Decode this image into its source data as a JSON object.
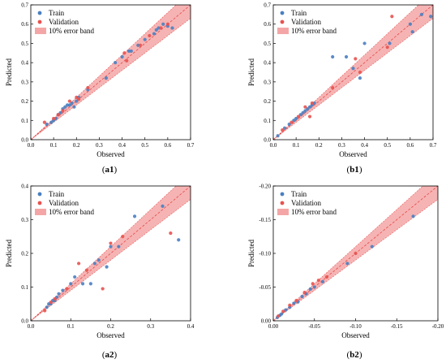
{
  "legend": {
    "train": "Train",
    "validation": "Validation",
    "band": "10% error band"
  },
  "colors": {
    "train": "#4a7fc1",
    "validation": "#e8524f",
    "band": "#f4a6a6",
    "band_edge": "#e85a5a",
    "diag": "#e23b3b"
  },
  "chart_data": [
    {
      "id": "a1",
      "type": "scatter",
      "caption_letter": "a1",
      "xlabel": "Observed",
      "ylabel": "Predicted",
      "xlim": [
        0,
        0.7
      ],
      "ylim": [
        0,
        0.7
      ],
      "xticks": [
        "0.0",
        "0.1",
        "0.2",
        "0.3",
        "0.4",
        "0.5",
        "0.6",
        "0.7"
      ],
      "yticks": [
        "0.0",
        "0.1",
        "0.2",
        "0.3",
        "0.4",
        "0.5",
        "0.6",
        "0.7"
      ],
      "tick_values": [
        0,
        0.1,
        0.2,
        0.3,
        0.4,
        0.5,
        0.6,
        0.7
      ],
      "series": [
        {
          "name": "Train",
          "points": [
            [
              0.07,
              0.08
            ],
            [
              0.09,
              0.09
            ],
            [
              0.1,
              0.1
            ],
            [
              0.11,
              0.11
            ],
            [
              0.12,
              0.13
            ],
            [
              0.13,
              0.14
            ],
            [
              0.14,
              0.16
            ],
            [
              0.15,
              0.17
            ],
            [
              0.16,
              0.18
            ],
            [
              0.17,
              0.18
            ],
            [
              0.18,
              0.19
            ],
            [
              0.19,
              0.17
            ],
            [
              0.2,
              0.2
            ],
            [
              0.21,
              0.22
            ],
            [
              0.25,
              0.26
            ],
            [
              0.33,
              0.32
            ],
            [
              0.37,
              0.4
            ],
            [
              0.4,
              0.43
            ],
            [
              0.43,
              0.46
            ],
            [
              0.44,
              0.46
            ],
            [
              0.47,
              0.49
            ],
            [
              0.5,
              0.52
            ],
            [
              0.54,
              0.55
            ],
            [
              0.55,
              0.57
            ],
            [
              0.56,
              0.58
            ],
            [
              0.58,
              0.6
            ],
            [
              0.6,
              0.59
            ],
            [
              0.62,
              0.58
            ]
          ]
        },
        {
          "name": "Validation",
          "points": [
            [
              0.06,
              0.09
            ],
            [
              0.1,
              0.11
            ],
            [
              0.12,
              0.13
            ],
            [
              0.14,
              0.15
            ],
            [
              0.17,
              0.2
            ],
            [
              0.2,
              0.22
            ],
            [
              0.21,
              0.21
            ],
            [
              0.25,
              0.27
            ],
            [
              0.41,
              0.45
            ],
            [
              0.42,
              0.41
            ],
            [
              0.48,
              0.49
            ],
            [
              0.52,
              0.54
            ],
            [
              0.57,
              0.58
            ],
            [
              0.6,
              0.6
            ]
          ]
        }
      ]
    },
    {
      "id": "b1",
      "type": "scatter",
      "caption_letter": "b1",
      "xlabel": "Observed",
      "ylabel": "Predicted",
      "xlim": [
        0,
        0.7
      ],
      "ylim": [
        0,
        0.7
      ],
      "xticks": [
        "0.0",
        "0.1",
        "0.2",
        "0.3",
        "0.4",
        "0.5",
        "0.6",
        "0.7"
      ],
      "yticks": [
        "0.0",
        "0.1",
        "0.2",
        "0.3",
        "0.4",
        "0.5",
        "0.6",
        "0.7"
      ],
      "tick_values": [
        0,
        0.1,
        0.2,
        0.3,
        0.4,
        0.5,
        0.6,
        0.7
      ],
      "series": [
        {
          "name": "Train",
          "points": [
            [
              0.02,
              0.02
            ],
            [
              0.05,
              0.06
            ],
            [
              0.07,
              0.08
            ],
            [
              0.09,
              0.1
            ],
            [
              0.1,
              0.11
            ],
            [
              0.12,
              0.13
            ],
            [
              0.13,
              0.14
            ],
            [
              0.14,
              0.15
            ],
            [
              0.15,
              0.16
            ],
            [
              0.16,
              0.17
            ],
            [
              0.17,
              0.18
            ],
            [
              0.18,
              0.19
            ],
            [
              0.26,
              0.43
            ],
            [
              0.32,
              0.43
            ],
            [
              0.35,
              0.37
            ],
            [
              0.38,
              0.32
            ],
            [
              0.4,
              0.5
            ],
            [
              0.51,
              0.5
            ],
            [
              0.6,
              0.6
            ],
            [
              0.61,
              0.56
            ],
            [
              0.65,
              0.65
            ],
            [
              0.69,
              0.64
            ]
          ]
        },
        {
          "name": "Validation",
          "points": [
            [
              0.04,
              0.05
            ],
            [
              0.08,
              0.09
            ],
            [
              0.11,
              0.12
            ],
            [
              0.14,
              0.17
            ],
            [
              0.16,
              0.12
            ],
            [
              0.17,
              0.19
            ],
            [
              0.26,
              0.27
            ],
            [
              0.36,
              0.42
            ],
            [
              0.38,
              0.35
            ],
            [
              0.5,
              0.48
            ],
            [
              0.52,
              0.64
            ]
          ]
        }
      ]
    },
    {
      "id": "a2",
      "type": "scatter",
      "caption_letter": "a2",
      "xlabel": "Observed",
      "ylabel": "Predicted",
      "xlim": [
        0,
        0.4
      ],
      "ylim": [
        0,
        0.4
      ],
      "xticks": [
        "0.0",
        "0.1",
        "0.2",
        "0.3",
        "0.4"
      ],
      "yticks": [
        "0.0",
        "0.1",
        "0.2",
        "0.3",
        "0.4"
      ],
      "tick_values": [
        0,
        0.1,
        0.2,
        0.3,
        0.4
      ],
      "series": [
        {
          "name": "Train",
          "points": [
            [
              0.04,
              0.04
            ],
            [
              0.045,
              0.05
            ],
            [
              0.05,
              0.05
            ],
            [
              0.055,
              0.06
            ],
            [
              0.06,
              0.06
            ],
            [
              0.065,
              0.07
            ],
            [
              0.07,
              0.08
            ],
            [
              0.08,
              0.09
            ],
            [
              0.1,
              0.11
            ],
            [
              0.11,
              0.13
            ],
            [
              0.13,
              0.11
            ],
            [
              0.15,
              0.11
            ],
            [
              0.16,
              0.17
            ],
            [
              0.17,
              0.18
            ],
            [
              0.19,
              0.16
            ],
            [
              0.2,
              0.22
            ],
            [
              0.22,
              0.22
            ],
            [
              0.26,
              0.31
            ],
            [
              0.33,
              0.34
            ],
            [
              0.37,
              0.24
            ]
          ]
        },
        {
          "name": "Validation",
          "points": [
            [
              0.035,
              0.03
            ],
            [
              0.05,
              0.055
            ],
            [
              0.06,
              0.065
            ],
            [
              0.09,
              0.095
            ],
            [
              0.12,
              0.17
            ],
            [
              0.14,
              0.15
            ],
            [
              0.18,
              0.095
            ],
            [
              0.2,
              0.23
            ],
            [
              0.23,
              0.25
            ],
            [
              0.35,
              0.26
            ]
          ]
        }
      ]
    },
    {
      "id": "b2",
      "type": "scatter",
      "caption_letter": "b2",
      "xlabel": "Observed",
      "ylabel": "Predicted",
      "xlim": [
        0,
        -0.2
      ],
      "ylim": [
        0,
        -0.2
      ],
      "xticks": [
        "0.00",
        "-0.05",
        "-0.10",
        "-0.15",
        "-0.20"
      ],
      "yticks": [
        "0.00",
        "-0.05",
        "-0.10",
        "-0.15",
        "-0.20"
      ],
      "tick_values": [
        0,
        -0.05,
        -0.1,
        -0.15,
        -0.2
      ],
      "series": [
        {
          "name": "Train",
          "points": [
            [
              -0.005,
              -0.005
            ],
            [
              -0.008,
              -0.008
            ],
            [
              -0.01,
              -0.01
            ],
            [
              -0.015,
              -0.016
            ],
            [
              -0.02,
              -0.02
            ],
            [
              -0.025,
              -0.026
            ],
            [
              -0.03,
              -0.028
            ],
            [
              -0.035,
              -0.036
            ],
            [
              -0.04,
              -0.04
            ],
            [
              -0.045,
              -0.047
            ],
            [
              -0.05,
              -0.05
            ],
            [
              -0.06,
              -0.058
            ],
            [
              -0.09,
              -0.085
            ],
            [
              -0.12,
              -0.11
            ],
            [
              -0.17,
              -0.155
            ]
          ]
        },
        {
          "name": "Validation",
          "points": [
            [
              -0.006,
              -0.007
            ],
            [
              -0.012,
              -0.014
            ],
            [
              -0.02,
              -0.023
            ],
            [
              -0.028,
              -0.03
            ],
            [
              -0.038,
              -0.042
            ],
            [
              -0.048,
              -0.055
            ],
            [
              -0.055,
              -0.06
            ],
            [
              -0.065,
              -0.065
            ],
            [
              -0.1,
              -0.1
            ]
          ]
        }
      ]
    }
  ]
}
